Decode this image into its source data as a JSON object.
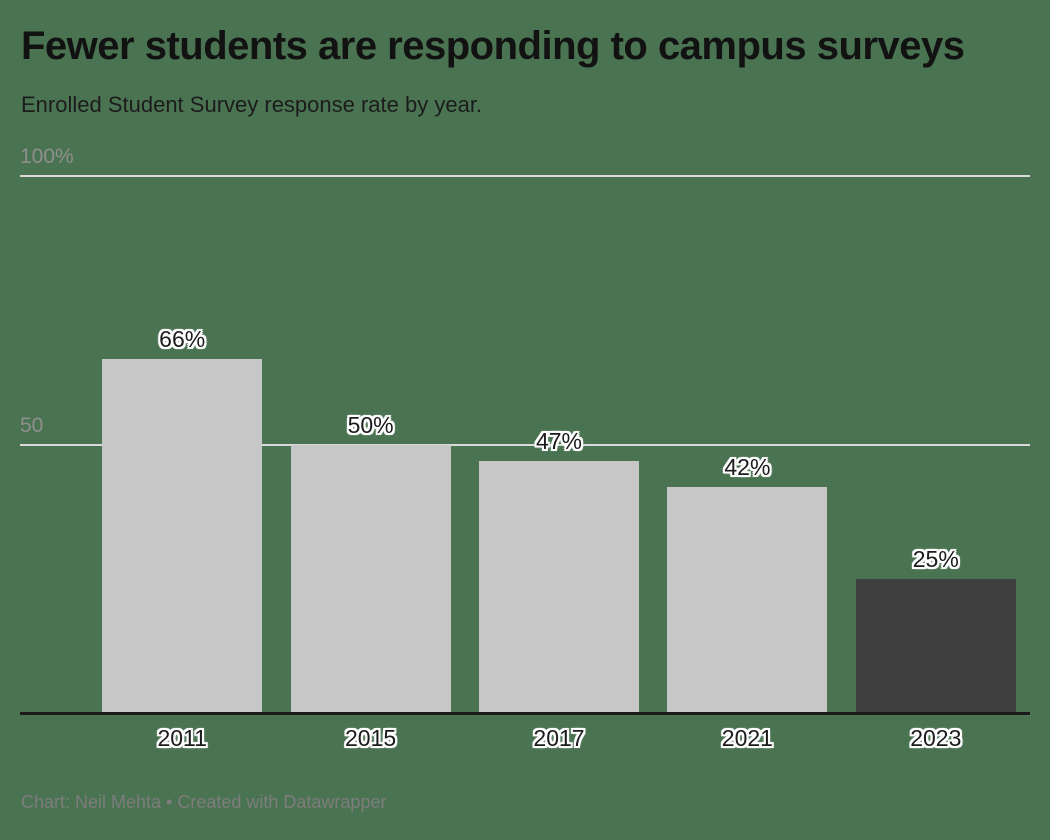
{
  "chart": {
    "title": "Fewer students are responding to campus surveys",
    "subtitle": "Enrolled Student Survey response rate by year.",
    "footer": "Chart: Neil Mehta • Created with Datawrapper"
  },
  "axis": {
    "y_top_label": "100%",
    "y_mid_label": "50"
  },
  "chart_data": {
    "type": "bar",
    "categories": [
      "2011",
      "2015",
      "2017",
      "2021",
      "2023"
    ],
    "values": [
      66,
      50,
      47,
      42,
      25
    ],
    "value_labels": [
      "66%",
      "50%",
      "47%",
      "42%",
      "25%"
    ],
    "title": "Fewer students are responding to campus surveys",
    "subtitle": "Enrolled Student Survey response rate by year.",
    "xlabel": "",
    "ylabel": "",
    "ylim": [
      0,
      100
    ],
    "gridlines": [
      50,
      100
    ],
    "grid": true,
    "legend": "none",
    "highlight_index": 4
  },
  "colors": {
    "background": "#4a7351",
    "bar_default": "#c7c7c7",
    "bar_highlight": "#3f3f3f",
    "gridline": "#dadada",
    "baseline": "#1a1a1a",
    "title_text": "#121212",
    "tick_text": "#8f8f8f",
    "label_text": "#1c1c1c",
    "footer_text": "#7d7d7d",
    "halo": "#ffffff"
  }
}
